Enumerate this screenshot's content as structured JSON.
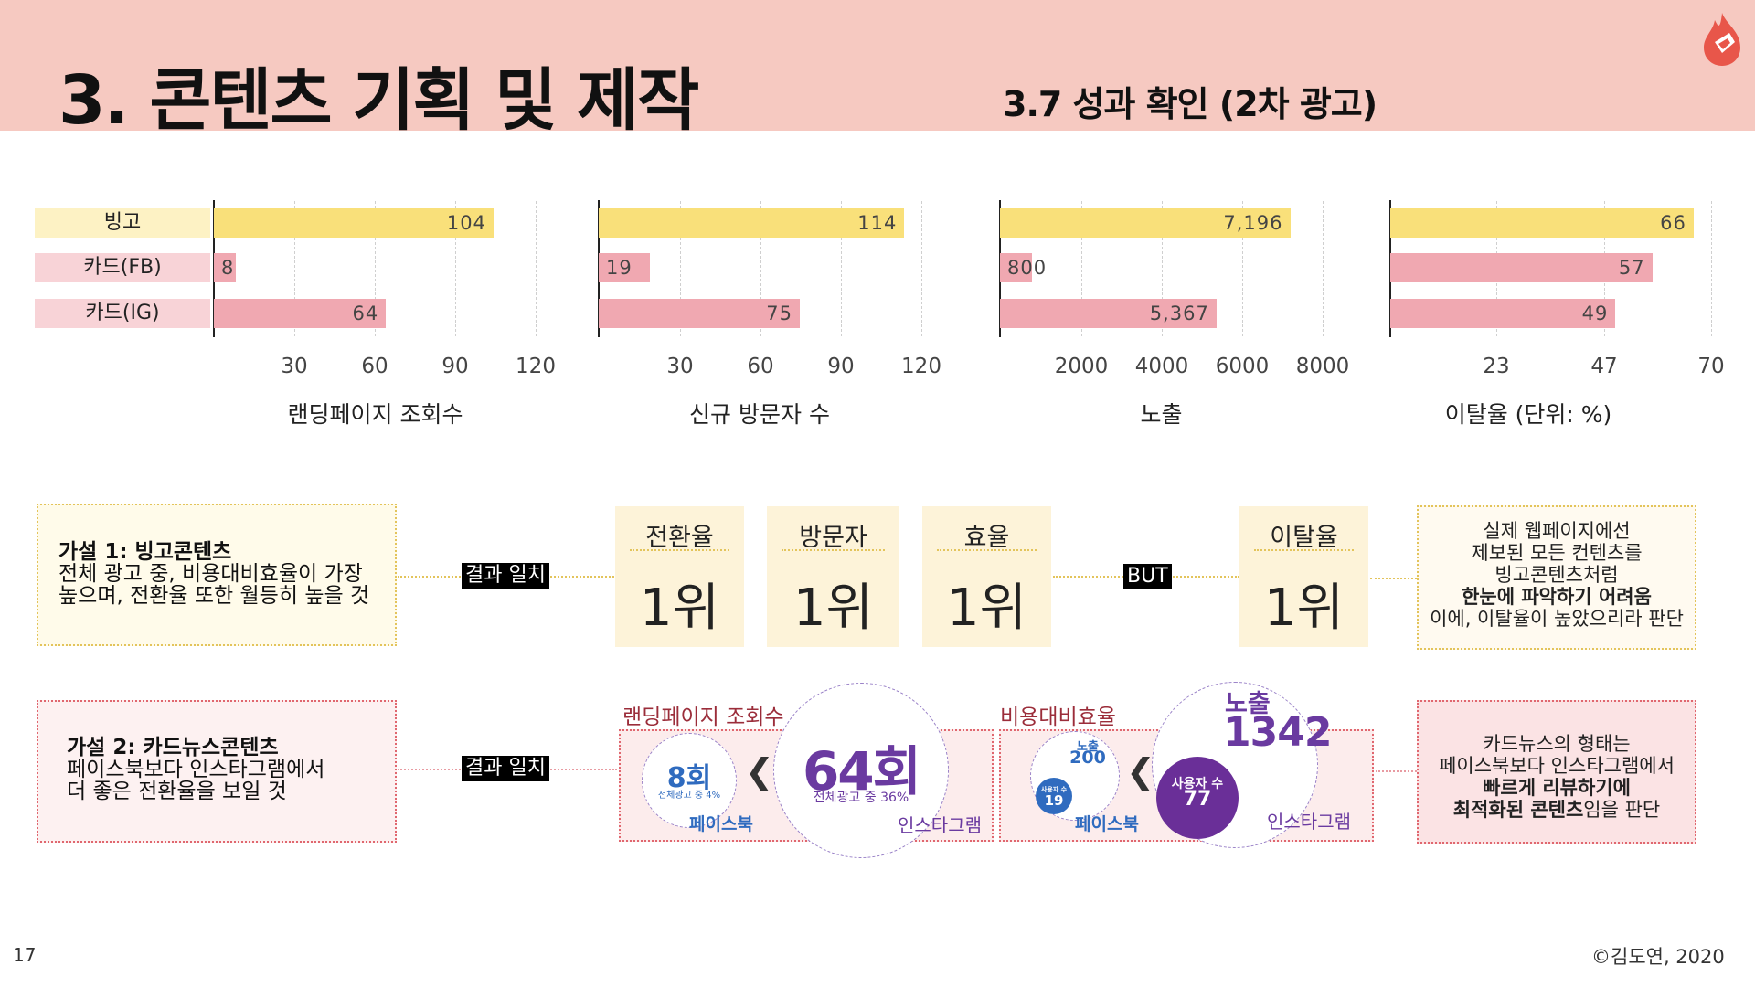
{
  "header": {
    "title": "3. 콘텐츠 기획 및 제작",
    "subtitle": "3.7 성과 확인 (2차 광고)"
  },
  "colors": {
    "header_bg": "#f6c9c1",
    "bingo": "#f9e07a",
    "card": "#f0a8b1",
    "purple": "#6a3aa0",
    "blue": "#2f6bbf"
  },
  "icons": {
    "logo": "flame-logo-icon"
  },
  "categories": [
    "빙고",
    "카드(FB)",
    "카드(IG)"
  ],
  "chart_data": [
    {
      "type": "bar",
      "categories": [
        "빙고",
        "카드(FB)",
        "카드(IG)"
      ],
      "values": [
        104,
        8,
        64
      ],
      "value_labels": [
        "104",
        "8",
        "64"
      ],
      "xlabel": "랜딩페이지 조회수",
      "xlim": [
        0,
        120
      ],
      "xticks": [
        "30",
        "60",
        "90",
        "120"
      ]
    },
    {
      "type": "bar",
      "categories": [
        "빙고",
        "카드(FB)",
        "카드(IG)"
      ],
      "values": [
        114,
        19,
        75
      ],
      "value_labels": [
        "114",
        "19",
        "75"
      ],
      "xlabel": "신규 방문자 수",
      "xlim": [
        0,
        120
      ],
      "xticks": [
        "30",
        "60",
        "90",
        "120"
      ]
    },
    {
      "type": "bar",
      "categories": [
        "빙고",
        "카드(FB)",
        "카드(IG)"
      ],
      "values": [
        7196,
        800,
        5367
      ],
      "value_labels": [
        "7,196",
        "800",
        "5,367"
      ],
      "xlabel": "노출",
      "xlim": [
        0,
        8000
      ],
      "xticks": [
        "2000",
        "4000",
        "6000",
        "8000"
      ]
    },
    {
      "type": "bar",
      "categories": [
        "빙고",
        "카드(FB)",
        "카드(IG)"
      ],
      "values": [
        66,
        57,
        49
      ],
      "value_labels": [
        "66",
        "57",
        "49"
      ],
      "xlabel": "이탈율 (단위: %)",
      "xlim": [
        0,
        70
      ],
      "xticks": [
        "23",
        "47",
        "70"
      ]
    }
  ],
  "hypothesis1": {
    "title": "가설 1: 빙고콘텐츠",
    "line1": "전체 광고 중,  비용대비효율이 가장",
    "line2": "높으며, 전환율 또한 월등히 높을 것",
    "tag": "결과 일치",
    "ranks": [
      {
        "title": "전환율",
        "value": "1위"
      },
      {
        "title": "방문자",
        "value": "1위"
      },
      {
        "title": "효율",
        "value": "1위"
      }
    ],
    "but": "BUT",
    "rank_extra": {
      "title": "이탈율",
      "value": "1위"
    },
    "note": {
      "line1": "실제 웹페이지에선",
      "line2": "제보된 모든 컨텐츠를",
      "line3": "빙고콘텐츠처럼",
      "line4_bold": "한눈에 파악하기 어려움",
      "line5": "이에, 이탈율이 높았으리라 판단"
    }
  },
  "hypothesis2": {
    "title": "가설 2: 카드뉴스콘텐츠",
    "line1": "페이스북보다 인스타그램에서",
    "line2": "더 좋은 전환율을 보일 것",
    "tag": "결과 일치",
    "landing": {
      "label": "랜딩페이지 조회수",
      "fb_value": "8회",
      "fb_sub": "전체광고 중 4%",
      "fb_name": "페이스북",
      "ig_value": "64회",
      "ig_sub": "전체광고 중 36%",
      "ig_name": "인스타그램",
      "compare": "❮"
    },
    "efficiency": {
      "label": "비용대비효율",
      "fb_exposure_label": "노출",
      "fb_exposure": "200",
      "fb_users_label": "사용자 수",
      "fb_users": "19",
      "fb_name": "페이스북",
      "ig_exposure_label": "노출",
      "ig_exposure": "1342",
      "ig_users_label": "사용자 수",
      "ig_users": "77",
      "ig_name": "인스타그램",
      "compare": "❮"
    },
    "note": {
      "line1": "카드뉴스의 형태는",
      "line2": "페이스북보다 인스타그램에서",
      "line3_bold": "빠르게 리뷰하기에",
      "line4_bold": "최적화된 콘텐츠",
      "line4_rest": "임을 판단"
    }
  },
  "footer": {
    "page": "17",
    "copyright": "©김도연, 2020"
  }
}
